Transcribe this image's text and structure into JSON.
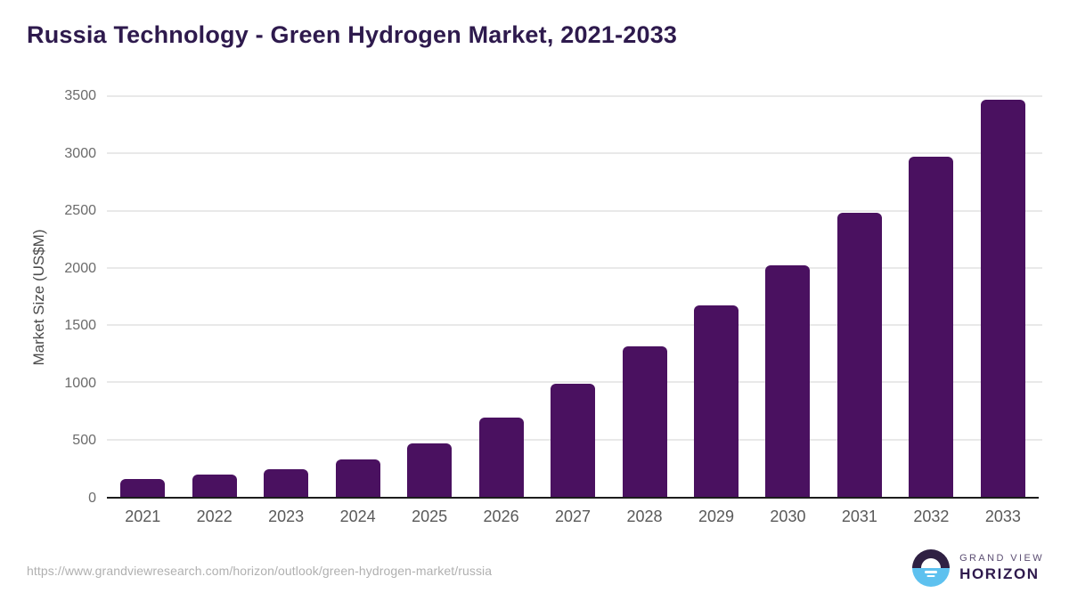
{
  "chart_data": {
    "type": "bar",
    "title": "Russia Technology - Green Hydrogen Market, 2021-2033",
    "categories": [
      "2021",
      "2022",
      "2023",
      "2024",
      "2025",
      "2026",
      "2027",
      "2028",
      "2029",
      "2030",
      "2031",
      "2032",
      "2033"
    ],
    "values": [
      155,
      195,
      245,
      330,
      465,
      695,
      985,
      1315,
      1670,
      2025,
      2485,
      2970,
      3470
    ],
    "xlabel": "",
    "ylabel": "Market Size (US$M)",
    "ylim": [
      0,
      3500
    ],
    "yticks": [
      0,
      500,
      1000,
      1500,
      2000,
      2500,
      3000,
      3500
    ],
    "grid": true,
    "legend_position": "none",
    "bar_color": "#4a1160"
  },
  "footer": {
    "source_url": "https://www.grandviewresearch.com/horizon/outlook/green-hydrogen-market/russia",
    "logo": {
      "top": "GRAND VIEW",
      "bottom": "HORIZON"
    }
  },
  "colors": {
    "bar": "#4a1160",
    "title": "#2e1a4d",
    "axis_line": "#1c1c1c",
    "gridline": "#e9e9e9",
    "y_tick_label": "#6b6b6b",
    "x_tick_label": "#595959",
    "url_text": "#b0b0b0",
    "logo_blue": "#5ec1ef",
    "logo_dark_purple": "#2f2043",
    "logo_text_top": "#5b4d72",
    "logo_text_bottom": "#2f1a4d"
  }
}
